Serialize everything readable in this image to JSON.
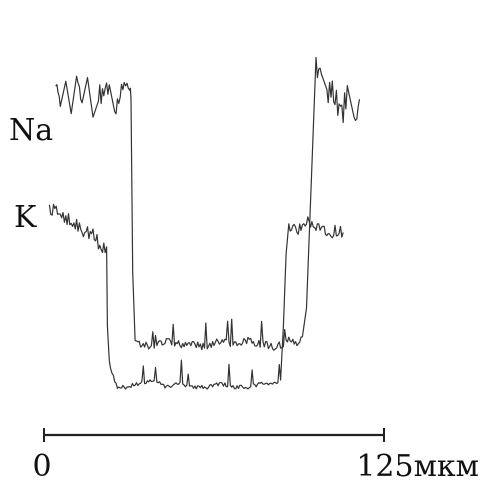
{
  "chart_data": {
    "type": "line",
    "series": [
      {
        "name": "Na",
        "x": [
          4.3,
          6.0,
          8.0,
          10.0,
          12.0,
          14.0,
          16.0,
          18.0,
          20.0,
          22.0,
          24.0,
          26.0,
          28.0,
          30.0,
          31.5,
          32.0,
          32.6,
          33.5,
          36.0,
          40.0,
          45.0,
          50.0,
          55.0,
          60.0,
          65.0,
          70.0,
          75.0,
          80.0,
          85.0,
          90.0,
          94.0,
          95.0,
          96.5,
          98.0,
          100.0,
          102.0,
          104.0,
          106.0,
          108.0,
          110.0,
          112.0,
          114.0,
          116.0
        ],
        "y": [
          100,
          96,
          103,
          94,
          101,
          97,
          104,
          93,
          100,
          98,
          102,
          95,
          99,
          101,
          97,
          98,
          50,
          30,
          30,
          29,
          31,
          30,
          30,
          29,
          31,
          30,
          31,
          30,
          29,
          31,
          30,
          32,
          40,
          70,
          108,
          105,
          98,
          102,
          97,
          95,
          100,
          93,
          98
        ]
      },
      {
        "name": "K",
        "x": [
          2.0,
          4.0,
          6.0,
          8.0,
          10.0,
          12.0,
          14.0,
          16.0,
          18.0,
          20.0,
          22.0,
          23.0,
          23.3,
          24.0,
          25.0,
          26.0,
          27.0,
          30.0,
          35.0,
          40.0,
          45.0,
          50.0,
          55.0,
          60.0,
          65.0,
          70.0,
          75.0,
          80.0,
          85.0,
          87.0,
          88.0,
          89.0,
          90.0,
          92.0,
          94.0,
          96.0,
          98.0,
          100.0,
          102.0,
          104.0,
          106.0,
          108.0,
          110.0
        ],
        "y": [
          68,
          67,
          66,
          65,
          64,
          63,
          62,
          61,
          60,
          58,
          57,
          57,
          35,
          25,
          22,
          20,
          18,
          18,
          19,
          20,
          18,
          19,
          18,
          18,
          19,
          18,
          18,
          19,
          19,
          20,
          35,
          55,
          62,
          63,
          62,
          64,
          63,
          62,
          63,
          62,
          61,
          62,
          61
        ]
      }
    ],
    "xlim": [
      0,
      125
    ],
    "ylim": [
      0,
      120
    ],
    "xunit": "мкм",
    "tick_labels": {
      "x_start": "0",
      "x_end": "125мкм"
    },
    "labels": {
      "na": "Na",
      "k": "K"
    },
    "grid": false,
    "legend": "inline-left",
    "colors": {
      "line": "#333333",
      "axis": "#222222",
      "text": "#111111",
      "background": "#ffffff"
    }
  }
}
